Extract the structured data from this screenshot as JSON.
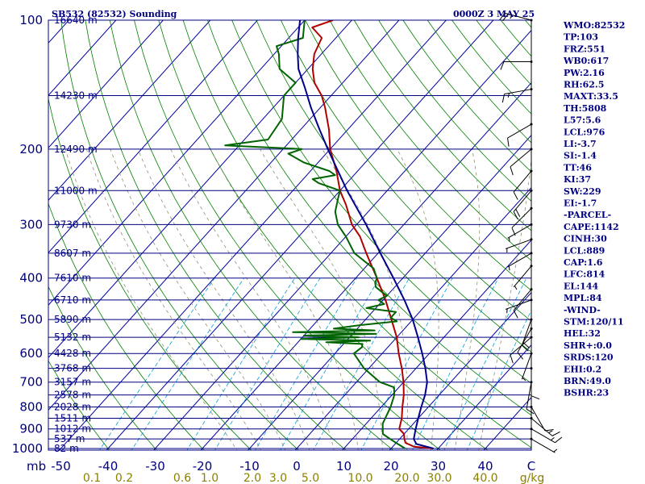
{
  "chart_data": {
    "type": "line",
    "title": "SB532 (82532) Sounding",
    "subtitle": "0000Z  3 MAY 25",
    "pressure_axis": {
      "unit": "mb",
      "ticks": [
        "100",
        "200",
        "300",
        "400",
        "500",
        "600",
        "700",
        "800",
        "900",
        "1000"
      ],
      "range": [
        100,
        1000
      ],
      "scale": "log"
    },
    "temperature_axis": {
      "unit": "C",
      "ticks": [
        "-50",
        "-40",
        "-30",
        "-20",
        "-10",
        "0",
        "10",
        "20",
        "30",
        "40"
      ],
      "range": [
        -50,
        50
      ]
    },
    "mixing_ratio_axis": {
      "unit": "g/kg",
      "ticks": [
        "0.1",
        "0.2",
        "0.6",
        "1.0",
        "2.0",
        "3.0",
        "5.0",
        "10.0",
        "20.0",
        "30.0",
        "40.0"
      ]
    },
    "heights": [
      {
        "p": 100,
        "label": "16640 m"
      },
      {
        "p": 150,
        "label": "14230 m"
      },
      {
        "p": 200,
        "label": "12490 m"
      },
      {
        "p": 250,
        "label": "11000 m"
      },
      {
        "p": 300,
        "label": "9730 m"
      },
      {
        "p": 350,
        "label": "8607 m"
      },
      {
        "p": 400,
        "label": "7610 m"
      },
      {
        "p": 450,
        "label": "6710 m"
      },
      {
        "p": 500,
        "label": "5890 m"
      },
      {
        "p": 550,
        "label": "5132 m"
      },
      {
        "p": 600,
        "label": "4428 m"
      },
      {
        "p": 650,
        "label": "3768 m"
      },
      {
        "p": 700,
        "label": "3157 m"
      },
      {
        "p": 750,
        "label": "2578 m"
      },
      {
        "p": 800,
        "label": "2028 m"
      },
      {
        "p": 850,
        "label": "1511 m"
      },
      {
        "p": 900,
        "label": "1012 m"
      },
      {
        "p": 950,
        "label": "537 m"
      },
      {
        "p": 1000,
        "label": "82 m"
      }
    ],
    "series": [
      {
        "name": "temperature",
        "color": "#b00000",
        "points": [
          [
            1000,
            29.0
          ],
          [
            990,
            24.5
          ],
          [
            970,
            22.0
          ],
          [
            950,
            21.0
          ],
          [
            925,
            20.0
          ],
          [
            900,
            18.0
          ],
          [
            850,
            16.5
          ],
          [
            800,
            14.5
          ],
          [
            750,
            12.5
          ],
          [
            700,
            10.0
          ],
          [
            650,
            7.0
          ],
          [
            600,
            3.5
          ],
          [
            550,
            0.0
          ],
          [
            500,
            -4.5
          ],
          [
            450,
            -9.5
          ],
          [
            400,
            -15.5
          ],
          [
            350,
            -22.5
          ],
          [
            320,
            -27.0
          ],
          [
            300,
            -31.0
          ],
          [
            270,
            -36.0
          ],
          [
            250,
            -40.0
          ],
          [
            225,
            -44.5
          ],
          [
            200,
            -50.0
          ],
          [
            180,
            -54.0
          ],
          [
            160,
            -59.0
          ],
          [
            150,
            -62.0
          ],
          [
            140,
            -66.0
          ],
          [
            130,
            -69.0
          ],
          [
            120,
            -71.5
          ],
          [
            110,
            -73.0
          ],
          [
            104,
            -77.0
          ],
          [
            100,
            -74.0
          ]
        ]
      },
      {
        "name": "dewpoint",
        "color": "#006400",
        "points": [
          [
            1000,
            23.0
          ],
          [
            970,
            20.0
          ],
          [
            950,
            18.0
          ],
          [
            925,
            15.5
          ],
          [
            900,
            14.5
          ],
          [
            875,
            13.5
          ],
          [
            850,
            13.0
          ],
          [
            800,
            12.0
          ],
          [
            750,
            10.5
          ],
          [
            720,
            9.0
          ],
          [
            700,
            5.0
          ],
          [
            650,
            -1.0
          ],
          [
            600,
            -6.0
          ],
          [
            580,
            -5.5
          ],
          [
            570,
            -6.0
          ],
          [
            565,
            -14.0
          ],
          [
            560,
            -5.0
          ],
          [
            555,
            -20.0
          ],
          [
            550,
            -8.0
          ],
          [
            545,
            -20.0
          ],
          [
            540,
            -5.0
          ],
          [
            535,
            -23.0
          ],
          [
            530,
            -6.0
          ],
          [
            525,
            -15.0
          ],
          [
            515,
            -10.0
          ],
          [
            505,
            -3.0
          ],
          [
            495,
            -5.0
          ],
          [
            480,
            -5.0
          ],
          [
            470,
            -12.0
          ],
          [
            460,
            -9.0
          ],
          [
            450,
            -11.0
          ],
          [
            440,
            -10.0
          ],
          [
            430,
            -12.0
          ],
          [
            420,
            -14.0
          ],
          [
            410,
            -15.0
          ],
          [
            400,
            -15.5
          ],
          [
            380,
            -18.0
          ],
          [
            350,
            -25.0
          ],
          [
            320,
            -30.0
          ],
          [
            300,
            -34.0
          ],
          [
            280,
            -37.0
          ],
          [
            260,
            -39.0
          ],
          [
            250,
            -40.0
          ],
          [
            240,
            -46.0
          ],
          [
            235,
            -48.0
          ],
          [
            230,
            -44.0
          ],
          [
            225,
            -46.0
          ],
          [
            215,
            -53.0
          ],
          [
            205,
            -58.0
          ],
          [
            200,
            -56.0
          ],
          [
            196,
            -73.0
          ],
          [
            190,
            -65.0
          ],
          [
            170,
            -66.0
          ],
          [
            150,
            -70.0
          ],
          [
            140,
            -70.0
          ],
          [
            130,
            -76.0
          ],
          [
            120,
            -79.0
          ],
          [
            115,
            -81.0
          ],
          [
            110,
            -77.0
          ],
          [
            100,
            -80.0
          ]
        ]
      },
      {
        "name": "parcel",
        "color": "#00008b",
        "points": [
          [
            1000,
            29.0
          ],
          [
            976,
            24.5
          ],
          [
            950,
            23.0
          ],
          [
            900,
            21.5
          ],
          [
            850,
            20.0
          ],
          [
            800,
            18.5
          ],
          [
            750,
            17.0
          ],
          [
            700,
            15.0
          ],
          [
            650,
            12.0
          ],
          [
            600,
            8.5
          ],
          [
            550,
            4.5
          ],
          [
            500,
            0.0
          ],
          [
            450,
            -5.5
          ],
          [
            400,
            -12.0
          ],
          [
            350,
            -19.5
          ],
          [
            300,
            -28.0
          ],
          [
            250,
            -38.5
          ],
          [
            200,
            -50.5
          ],
          [
            180,
            -56.0
          ],
          [
            160,
            -62.0
          ],
          [
            144,
            -67.0
          ],
          [
            130,
            -72.0
          ],
          [
            120,
            -75.0
          ],
          [
            110,
            -78.0
          ],
          [
            100,
            -81.0
          ]
        ]
      }
    ],
    "winds": [
      {
        "p": 100,
        "dir": 285,
        "spd": 25
      },
      {
        "p": 125,
        "dir": 270,
        "spd": 10
      },
      {
        "p": 145,
        "dir": 260,
        "spd": 15
      },
      {
        "p": 175,
        "dir": 240,
        "spd": 10
      },
      {
        "p": 200,
        "dir": 230,
        "spd": 10
      },
      {
        "p": 225,
        "dir": 220,
        "spd": 10
      },
      {
        "p": 250,
        "dir": 220,
        "spd": 20
      },
      {
        "p": 275,
        "dir": 225,
        "spd": 10
      },
      {
        "p": 300,
        "dir": 240,
        "spd": 5
      },
      {
        "p": 325,
        "dir": 250,
        "spd": 5
      },
      {
        "p": 350,
        "dir": 240,
        "spd": 5
      },
      {
        "p": 375,
        "dir": 220,
        "spd": 5
      },
      {
        "p": 425,
        "dir": 220,
        "spd": 10
      },
      {
        "p": 450,
        "dir": 250,
        "spd": 5
      },
      {
        "p": 500,
        "dir": 200,
        "spd": 20
      },
      {
        "p": 525,
        "dir": 210,
        "spd": 10
      },
      {
        "p": 550,
        "dir": 230,
        "spd": 10
      },
      {
        "p": 600,
        "dir": 200,
        "spd": 5
      },
      {
        "p": 650,
        "dir": 180,
        "spd": 10
      },
      {
        "p": 700,
        "dir": 190,
        "spd": 10
      },
      {
        "p": 800,
        "dir": 150,
        "spd": 10
      },
      {
        "p": 850,
        "dir": 130,
        "spd": 15
      },
      {
        "p": 900,
        "dir": 120,
        "spd": 15
      },
      {
        "p": 950,
        "dir": 120,
        "spd": 5
      }
    ],
    "indices": [
      "WMO:82532",
      "TP:103",
      "FRZ:551",
      "WB0:617",
      "PW:2.16",
      "RH:62.5",
      "MAXT:33.5",
      "TH:5808",
      "L57:5.6",
      "LCL:976",
      "LI:-3.7",
      "SI:-1.4",
      "TT:46",
      "KI:37",
      "SW:229",
      "EI:-1.7",
      "-PARCEL-",
      "CAPE:1142",
      "CINH:30",
      "LCL:889",
      "CAP:1.6",
      "LFC:814",
      "EL:144",
      "MPL:84",
      "-WIND-",
      "STM:120/11",
      "HEL:32",
      "SHR+:0.0",
      "SRDS:120",
      "EHI:0.2",
      "BRN:49.0",
      "BSHR:23"
    ],
    "colors": {
      "frame": "#000080",
      "isobar": "#000080",
      "isotherm": "#0000a0",
      "dry_adiabat": "#008000",
      "moist_adiabat": "#909070",
      "mixing_ratio": "#00a0e0",
      "temperature": "#b00000",
      "dewpoint": "#006400",
      "parcel": "#00008b",
      "text": "#000080",
      "mixing_label": "#8b8000"
    }
  }
}
